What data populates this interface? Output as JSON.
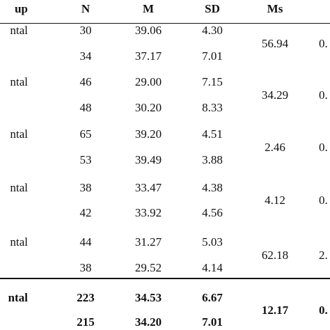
{
  "header": {
    "group": "up",
    "n": "N",
    "m": "M",
    "sd": "SD",
    "ms": "Ms"
  },
  "groups": [
    {
      "ms": "56.94",
      "p": "0.",
      "rows": [
        {
          "group": "ntal",
          "n": "30",
          "m": "39.06",
          "sd": "4.30"
        },
        {
          "n": "34",
          "m": "37.17",
          "sd": "7.01"
        }
      ]
    },
    {
      "ms": "34.29",
      "p": "0.",
      "rows": [
        {
          "group": "ntal",
          "n": "46",
          "m": "29.00",
          "sd": "7.15"
        },
        {
          "n": "48",
          "m": "30.20",
          "sd": "8.33"
        }
      ]
    },
    {
      "ms": "2.46",
      "p": "0.",
      "rows": [
        {
          "group": "ntal",
          "n": "65",
          "m": "39.20",
          "sd": "4.51"
        },
        {
          "n": "53",
          "m": "39.49",
          "sd": "3.88"
        }
      ]
    },
    {
      "ms": "4.12",
      "p": "0.",
      "rows": [
        {
          "group": "ntal",
          "n": "38",
          "m": "33.47",
          "sd": "4.38"
        },
        {
          "n": "42",
          "m": "33.92",
          "sd": "4.56"
        }
      ]
    },
    {
      "ms": "62.18",
      "p": "2.",
      "rows": [
        {
          "group": "ntal",
          "n": "44",
          "m": "31.27",
          "sd": "5.03"
        },
        {
          "n": "38",
          "m": "29.52",
          "sd": "4.14"
        }
      ]
    },
    {
      "ms": "12.17",
      "p": "0.",
      "rows": [
        {
          "group": "ntal",
          "n": "223",
          "m": "34.53",
          "sd": "6.67"
        },
        {
          "n": "215",
          "m": "34.20",
          "sd": "7.01"
        }
      ]
    }
  ]
}
